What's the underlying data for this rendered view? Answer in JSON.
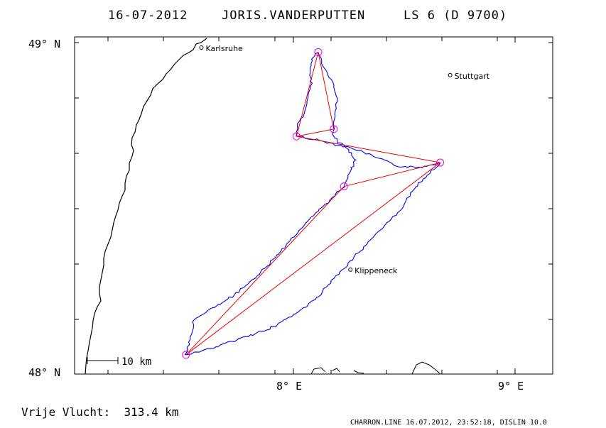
{
  "header": {
    "date": "16-07-2012",
    "pilot": "JORIS.VANDERPUTTEN",
    "glider": "LS 6 (D 9700)"
  },
  "axes": {
    "lat_top": "49° N",
    "lat_bottom": "48° N",
    "lon_8": "8° E",
    "lon_9": "9° E"
  },
  "places": [
    {
      "name": "Karlsruhe",
      "lon": 7.585,
      "lat": 48.985
    },
    {
      "name": "Stuttgart",
      "lon": 8.707,
      "lat": 48.902
    },
    {
      "name": "Klippeneck",
      "lon": 8.257,
      "lat": 48.315
    }
  ],
  "turnpoints": [
    {
      "lon": 8.112,
      "lat": 48.971
    },
    {
      "lon": 8.182,
      "lat": 48.739
    },
    {
      "lon": 8.014,
      "lat": 48.717
    },
    {
      "lon": 8.662,
      "lat": 48.638
    },
    {
      "lon": 8.228,
      "lat": 48.566
    },
    {
      "lon": 7.515,
      "lat": 48.058
    }
  ],
  "scale_bar": {
    "label": "10 km"
  },
  "footer": {
    "distance": "Vrije Vlucht:  313.4 km",
    "credits": "CHARRON.LINE 16.07.2012, 23:52:18, DISLIN 10.0"
  },
  "colors": {
    "track": "#0000ee",
    "triangle": "#ee0000",
    "turnpoint": "#ee00ee",
    "border": "#000000"
  }
}
